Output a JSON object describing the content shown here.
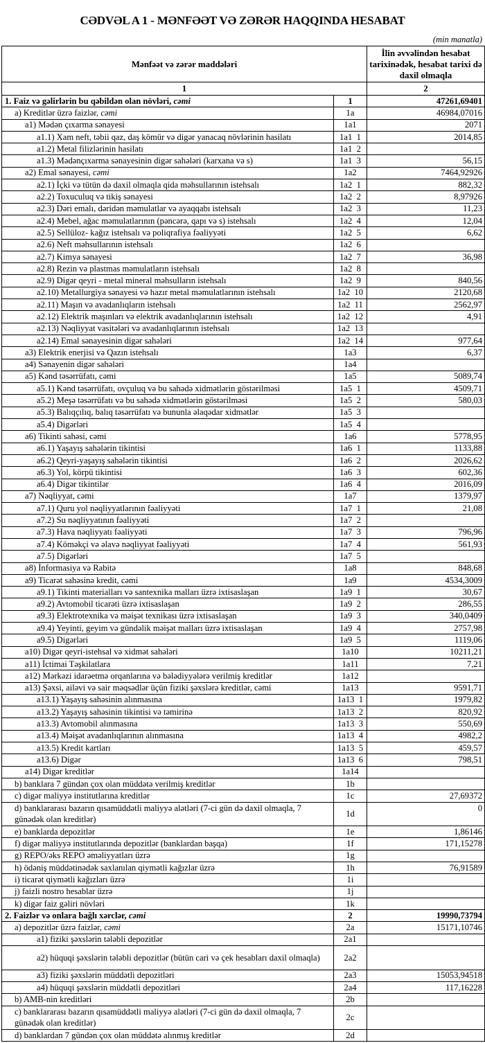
{
  "title": "CƏDVƏL A 1 - MƏNFƏƏT VƏ ZƏRƏR HAQQINDA HESABAT",
  "unit": "(min manatla)",
  "header": {
    "col1": "Mənfəət və zərər maddələri",
    "col2": "İlin əvvəlindən hesabat tarixinədək, hesabat tarixi də daxil olmaqla",
    "num1": "1",
    "num2": "2"
  },
  "rows": [
    {
      "label": "1. Faiz və gəlirlərin bu qəbildən olan növləri, ",
      "italic": "cəmi",
      "code": "1",
      "value": "47261,69401",
      "level": 0,
      "bold": true
    },
    {
      "label": "a) Kreditlər üzrə faizlər, ",
      "italic": "cəmi",
      "code": "1a",
      "value": "46984,07016",
      "level": 1
    },
    {
      "label": "a1) Mədən çıxarma sənayesi",
      "code": "1a1",
      "value": "2071",
      "level": 2
    },
    {
      "label": "a1.1) Xam neft, təbii qaz, daş kömür və digər yanacaq növlərinin hasilatı",
      "code": "1a1  1",
      "value": "2014,85",
      "level": 3
    },
    {
      "label": "a1.2) Metal filizlərinin hasilatı",
      "code": "1a1  2",
      "value": "",
      "level": 3
    },
    {
      "label": "a1.3) Mədənçıxarma sənayesinin digər sahələri (karxana və s)",
      "code": "1a1  3",
      "value": "56,15",
      "level": 3
    },
    {
      "label": "a2) Emal sənayesi, ",
      "italic": "cəmi",
      "code": "1a2",
      "value": "7464,92926",
      "level": 2
    },
    {
      "label": "a2.1) İçki və tütün də daxil olmaqla qida məhsullarının istehsalı",
      "code": "1a2  1",
      "value": "882,32",
      "level": 3
    },
    {
      "label": "a2.2) Toxuculuq və tikiş sənayesi",
      "code": "1a2  2",
      "value": "8,97926",
      "level": 3
    },
    {
      "label": "a2.3) Dəri emalı, dəridən məmulatlar və ayaqqabı istehsalı",
      "code": "1a2  3",
      "value": "11,23",
      "level": 3
    },
    {
      "label": "a2.4) Mebel, ağac məmulatlarının (pəncərə, qapı və s) istehsalı",
      "code": "1a2  4",
      "value": "12,04",
      "level": 3
    },
    {
      "label": "a2.5) Sellüloz- kağız istehsalı və poliqrafiya fəaliyyəti",
      "code": "1a2  5",
      "value": "6,62",
      "level": 3
    },
    {
      "label": "a2.6) Neft məhsullarının istehsalı",
      "code": "1a2  6",
      "value": "",
      "level": 3
    },
    {
      "label": "a2.7) Kimya sənayesi",
      "code": "1a2  7",
      "value": "36,98",
      "level": 3
    },
    {
      "label": "a2.8) Rezin və plastmas məmulatların istehsalı",
      "code": "1a2  8",
      "value": "",
      "level": 3
    },
    {
      "label": "a2.9) Digər qeyri - metal mineral məhsulların istehsalı",
      "code": "1a2  9",
      "value": "840,56",
      "level": 3
    },
    {
      "label": "a2.10) Metallurgiya sənayesi və hazır metal məmulatlarının istehsalı",
      "code": "1a2  10",
      "value": "2120,68",
      "level": 3
    },
    {
      "label": "a2.11) Maşın və avadanlıqların istehsalı",
      "code": "1a2  11",
      "value": "2562,97",
      "level": 3
    },
    {
      "label": "a2.12) Elektrik maşınları və elektrik avadanlıqlarının istehsalı",
      "code": "1a2  12",
      "value": "4,91",
      "level": 3
    },
    {
      "label": "a2.13) Nəqliyyat vasitələri və avadanlıqlarının istehsalı",
      "code": "1a2  13",
      "value": "",
      "level": 3
    },
    {
      "label": "a2.14) Emal sənayesinin digər sahələri",
      "code": "1a2  14",
      "value": "977,64",
      "level": 3
    },
    {
      "label": "a3) Elektrik enerjisi və Qazın istehsalı",
      "code": "1a3",
      "value": "6,37",
      "level": 2
    },
    {
      "label": "a4) Sənayenin digər sahələri",
      "code": "1a4",
      "value": "",
      "level": 2
    },
    {
      "label": "a5) Kənd təsərrüfatı, cəmi",
      "code": "1a5",
      "value": "5089,74",
      "level": 2
    },
    {
      "label": "a5.1) Kənd təsərrüfatı, ovçuluq və bu sahədə xidmətlərin göstərilməsi",
      "code": "1a5  1",
      "value": "4509,71",
      "level": 3
    },
    {
      "label": "a5.2) Meşə təsərrüfatı və bu sahədə xidmətlərin göstərilməsi",
      "code": "1a5  2",
      "value": "580,03",
      "level": 3
    },
    {
      "label": "a5.3) Balıqçılıq, balıq təsərrüfatı və bununla əlaqədar xidmətlər",
      "code": "1a5  3",
      "value": "",
      "level": 3
    },
    {
      "label": "a5.4) Digərləri",
      "code": "1a5  4",
      "value": "",
      "level": 3
    },
    {
      "label": "a6) Tikinti sahəsi, cəmi",
      "code": "1a6",
      "value": "5778,95",
      "level": 2
    },
    {
      "label": "a6.1) Yaşayış sahələrin tikintisi",
      "code": "1a6  1",
      "value": "1133,88",
      "level": 3
    },
    {
      "label": "a6.2) Qeyri-yaşayış sahələrin tikintisi",
      "code": "1a6  2",
      "value": "2026,62",
      "level": 3
    },
    {
      "label": "a6.3) Yol, körpü tikintisi",
      "code": "1a6  3",
      "value": "602,36",
      "level": 3
    },
    {
      "label": "a6.4) Digər tikintilər",
      "code": "1a6  4",
      "value": "2016,09",
      "level": 3
    },
    {
      "label": "a7) Nəqliyyat, cəmi",
      "code": "1a7",
      "value": "1379,97",
      "level": 2
    },
    {
      "label": "a7.1) Quru yol nəqliyyatlarının fəaliyyəti",
      "code": "1a7  1",
      "value": "21,08",
      "level": 3
    },
    {
      "label": "a7.2) Su nəqliyyatının fəaliyyəti",
      "code": "1a7  2",
      "value": "",
      "level": 3
    },
    {
      "label": "a7.3) Hava nəqliyyatı fəaliyyəti",
      "code": "1a7  3",
      "value": "796,96",
      "level": 3
    },
    {
      "label": "a7.4) Köməkçi və əlavə nəqliyyat fəaliyyəti",
      "code": "1a7  4",
      "value": "561,93",
      "level": 3
    },
    {
      "label": "a7.5) Digərləri",
      "code": "1a7  5",
      "value": "",
      "level": 3
    },
    {
      "label": "a8)  İnformasiya və Rabitə",
      "code": "1a8",
      "value": "848,68",
      "level": 2
    },
    {
      "label": "a9) Ticarət sahəsinə kredit, cəmi",
      "code": "1a9",
      "value": "4534,3009",
      "level": 2
    },
    {
      "label": "a9.1) Tikinti materialları və santexnika malları üzrə ixtisaslaşan",
      "code": "1a9  1",
      "value": "30,67",
      "level": 3
    },
    {
      "label": "a9.2) Avtomobil ticarəti üzrə ixtisaslaşan",
      "code": "1a9  2",
      "value": "286,55",
      "level": 3
    },
    {
      "label": "a9.3) Elektrotexnika və məişət texnikası üzrə ixtisaslaşan",
      "code": "1a9  3",
      "value": "340,0409",
      "level": 3
    },
    {
      "label": "a9.4) Yeyinti, geyim və gündəlik məişət malları üzrə ixtisaslaşan",
      "code": "1a9  4",
      "value": "2757,98",
      "level": 3
    },
    {
      "label": "a9.5) Digərləri",
      "code": "1a9  5",
      "value": "1119,06",
      "level": 3
    },
    {
      "label": "a10) Digər qeyri-istehsal və xidmət sahələri",
      "code": "1a10",
      "value": "10211,21",
      "level": 2
    },
    {
      "label": "a11) İctimai Təşkilatlara",
      "code": "1a11",
      "value": "7,21",
      "level": 2
    },
    {
      "label": "a12) Mərkəzi  idarəetmə orqanlarına və bələdiyyələrə verilmiş kreditlər",
      "code": "1a12",
      "value": "",
      "level": 2
    },
    {
      "label": "a13) Şəxsi, ailəvi və sair məqsədlər üçün fiziki şəxslərə kreditlər, cəmi",
      "code": "1a13",
      "value": "9591,71",
      "level": 2
    },
    {
      "label": "a13.1) Yaşayış sahəsinin alınmasına",
      "code": "1a13  1",
      "value": "1979,82",
      "level": 3
    },
    {
      "label": "a13.2) Yaşayış sahəsinin tikintisi və təmirinə",
      "code": "1a13  2",
      "value": "820,92",
      "level": 3
    },
    {
      "label": "a13.3) Avtomobil alınmasına",
      "code": "1a13  3",
      "value": "550,69",
      "level": 3
    },
    {
      "label": "a13.4) Məişət avadanlıqlarının alınmasına",
      "code": "1a13  4",
      "value": "4982,2",
      "level": 3
    },
    {
      "label": "a13.5) Kredit kartları",
      "code": "1a13  5",
      "value": "459,57",
      "level": 3
    },
    {
      "label": "a13.6) Digər",
      "code": "1a13  6",
      "value": "798,51",
      "level": 3
    },
    {
      "label": "a14) Digər kreditlər",
      "code": "1a14",
      "value": "",
      "level": 2
    },
    {
      "label": "b) banklara 7 gündən çox olan müddətə verilmiş kreditlər",
      "code": "1b",
      "value": "",
      "level": 1
    },
    {
      "label": "c) digər maliyyə institutlarına kreditlər",
      "code": "1c",
      "value": "27,69372",
      "level": 1
    },
    {
      "label": "d) banklararası bazarın qısamüddətli maliyyə alətləri (7-ci gün də daxil olmaqla, 7 günədək olan kreditlər)",
      "code": "1d",
      "value": "0",
      "level": 1,
      "double": true
    },
    {
      "label": "e) banklarda depozitlər",
      "code": "1e",
      "value": "1,86146",
      "level": 1
    },
    {
      "label": "f) digər maliyyə institutlarında depozitlər (banklardan başqa)",
      "code": "1f",
      "value": "171,15278",
      "level": 1
    },
    {
      "label": "g) REPO/əks REPO əməliyyatları üzrə",
      "code": "1g",
      "value": "",
      "level": 1
    },
    {
      "label": "h) ödəniş müddətinədək saxlanılan qiymətli kağızlar üzrə",
      "code": "1h",
      "value": "76,91589",
      "level": 1
    },
    {
      "label": "i) ticarət qiymətli kağızları üzrə",
      "code": "1i",
      "value": "",
      "level": 1
    },
    {
      "label": "j) faizli nostro hesablar üzrə",
      "code": "1j",
      "value": "",
      "level": 1
    },
    {
      "label": "k) digər faiz gəliri növləri",
      "code": "1k",
      "value": "",
      "level": 1
    },
    {
      "label": "2. Faizlər və onlara bağlı xərclər, ",
      "italic": "cəmi",
      "code": "2",
      "value": "19990,73794",
      "level": 0,
      "bold": true
    },
    {
      "label": "a) depozitlər üzrə faizlər, ",
      "italic": "cəmi",
      "code": "2a",
      "value": "15171,10746",
      "level": 1
    },
    {
      "label": "a1) fiziki şəxslərin tələbli depozitlər",
      "code": "2a1",
      "value": "",
      "level": 3
    },
    {
      "label": "a2) hüquqi şəxslərin tələbli depozitlər (bütün cari və çek hesabları daxil olmaqla)",
      "code": "2a2",
      "value": "",
      "level": 3,
      "double": true
    },
    {
      "label": "a3) fiziki şəxslərin müddətli depozitləri",
      "code": "2a3",
      "value": "15053,94518",
      "level": 3
    },
    {
      "label": "a4) hüquqi şəxslərin müddətli depozitləri",
      "code": "2a4",
      "value": "117,16228",
      "level": 3
    },
    {
      "label": "b) AMB-nin kreditləri",
      "code": "2b",
      "value": "",
      "level": 1
    },
    {
      "label": "c) banklararası bazarın qısamüddətli maliyyə alətləri (7-ci gün də daxil olmaqla, 7 günədək olan kreditlər)",
      "code": "2c",
      "value": "",
      "level": 1,
      "double": true
    },
    {
      "label": "d) banklardan 7 gündən çox olan müddətə alınmış kreditlər",
      "code": "2d",
      "value": "",
      "level": 1
    }
  ]
}
